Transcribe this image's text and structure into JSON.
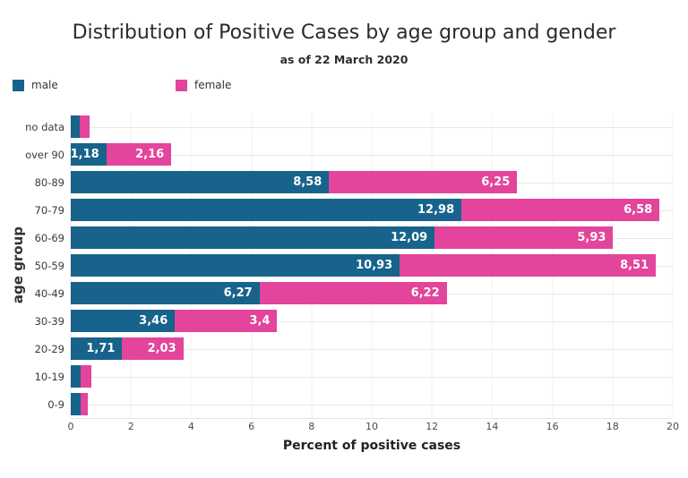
{
  "page": {
    "background": "#ffffff"
  },
  "header": {
    "title": "Distribution of Positive Cases by age group and gender",
    "subtitle": "as of 22 March 2020"
  },
  "legend": {
    "items": [
      {
        "label": "male",
        "color": "#17638c"
      },
      {
        "label": "female",
        "color": "#e2459b"
      }
    ]
  },
  "axes": {
    "xlabel": "Percent of positive cases",
    "ylabel": "age group"
  },
  "chart_data": {
    "type": "bar",
    "orientation": "horizontal",
    "stacked": true,
    "title": "Distribution of Positive Cases by age group and gender",
    "subtitle": "as of 22 March 2020",
    "xlabel": "Percent of positive cases",
    "ylabel": "age group",
    "xlim": [
      0,
      20
    ],
    "xticks": [
      0,
      2,
      4,
      6,
      8,
      10,
      12,
      14,
      16,
      18,
      20
    ],
    "grid": true,
    "legend_position": "top-left",
    "categories": [
      "no data",
      "over 90",
      "80-89",
      "70-79",
      "60-69",
      "50-59",
      "40-49",
      "30-39",
      "20-29",
      "10-19",
      "0-9"
    ],
    "series": [
      {
        "name": "male",
        "color": "#17638c",
        "values": [
          0.3,
          1.18,
          8.58,
          12.98,
          12.09,
          10.93,
          6.27,
          3.46,
          1.71,
          0.33,
          0.33
        ],
        "labels": [
          "",
          "1,18",
          "8,58",
          "12,98",
          "12,09",
          "10,93",
          "6,27",
          "3,46",
          "1,71",
          "",
          ""
        ]
      },
      {
        "name": "female",
        "color": "#e2459b",
        "values": [
          0.33,
          2.16,
          6.25,
          6.58,
          5.93,
          8.51,
          6.22,
          3.4,
          2.03,
          0.35,
          0.25
        ],
        "labels": [
          "",
          "2,16",
          "6,25",
          "6,58",
          "5,93",
          "8,51",
          "6,22",
          "3,4",
          "2,03",
          "",
          ""
        ]
      }
    ]
  }
}
